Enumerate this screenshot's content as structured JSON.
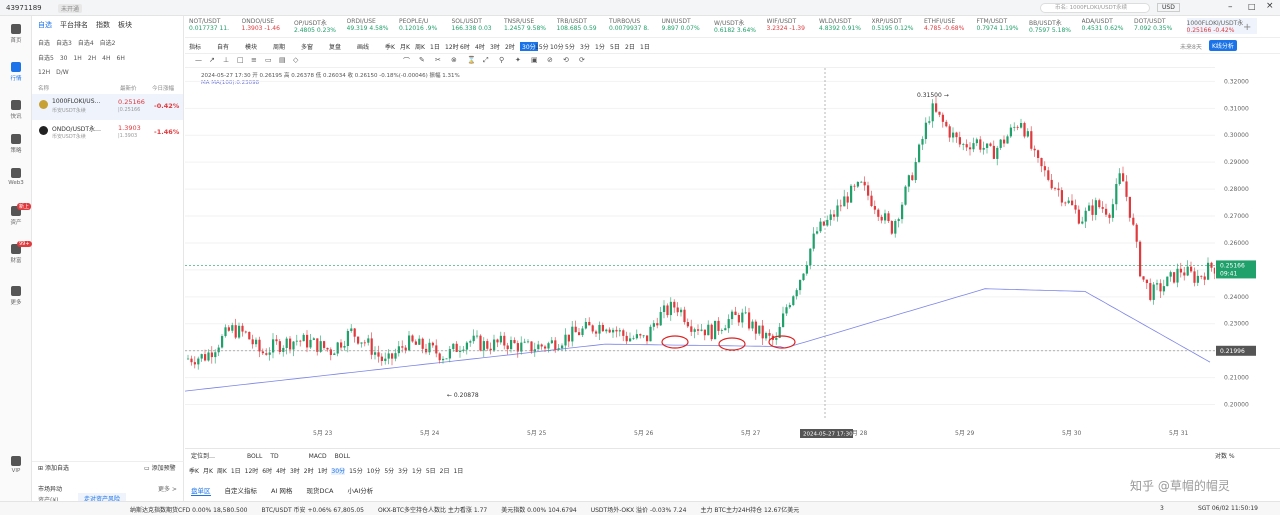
{
  "titlebar": {
    "account": "43971189",
    "status": "未开通",
    "search_placeholder": "币名: 1000FLOKI/USDT永续",
    "currency": "USD"
  },
  "leftnav": [
    {
      "label": "首页",
      "icon": "home-icon"
    },
    {
      "label": "行情",
      "icon": "chart-icon"
    },
    {
      "label": "快讯",
      "icon": "news-icon"
    },
    {
      "label": "策略",
      "icon": "strategy-icon"
    },
    {
      "label": "Web3",
      "icon": "web3-icon"
    },
    {
      "label": "资产",
      "icon": "wallet-icon",
      "badge": "新上"
    },
    {
      "label": "财富",
      "icon": "wealth-icon",
      "badge": "99+"
    },
    {
      "label": "更多",
      "icon": "more-icon"
    },
    {
      "label": "VIP",
      "icon": "vip-icon"
    }
  ],
  "watch": {
    "tabs": [
      "自选",
      "平台排名",
      "指数",
      "板块"
    ],
    "subtabs1": [
      "自选",
      "自选3",
      "自选4",
      "自选2"
    ],
    "subtabs2": [
      "自选5",
      "30",
      "1H",
      "2H",
      "4H",
      "6H"
    ],
    "subtabs3": [
      "12H",
      "D/W"
    ],
    "headers": {
      "name": "名称",
      "price": "最新价",
      "change": "今日涨幅"
    },
    "rows": [
      {
        "name": "1000FLOKI/US…",
        "sub": "币安USDT永续",
        "price": "0.25166",
        "sub2": "|0.25166",
        "change": "-0.42%"
      },
      {
        "name": "ONDO/USDT永…",
        "sub": "币安USDT永续",
        "price": "1.3903",
        "sub2": "|1.3903",
        "change": "-1.46%"
      }
    ],
    "add_watch": "添加自选",
    "add_alert": "添加预警"
  },
  "tickers": [
    {
      "n": "NOT/USDT",
      "p": "0.017737 11."
    },
    {
      "n": "ONDO/USE",
      "p": "1.3903 -1.46"
    },
    {
      "n": "OP/USDT永",
      "p": "2.4805 0.23%"
    },
    {
      "n": "ORDI/USE",
      "p": "49.319 4.58%"
    },
    {
      "n": "PEOPLE/U",
      "p": "0.12016 .9%"
    },
    {
      "n": "SOL/USDT",
      "p": "166.338 0.03"
    },
    {
      "n": "TNSR/USE",
      "p": "1.2457 9.58%"
    },
    {
      "n": "TRB/USDT",
      "p": "108.685 0.59"
    },
    {
      "n": "TURBO/US",
      "p": "0.0079937 8."
    },
    {
      "n": "UNI/USDT",
      "p": "9.897 0.07%"
    },
    {
      "n": "W/USDT永",
      "p": "0.6182 3.64%"
    },
    {
      "n": "WIF/USDT",
      "p": "3.2324 -1.39"
    },
    {
      "n": "WLD/USDT",
      "p": "4.8392 0.91%"
    },
    {
      "n": "XRP/USDT",
      "p": "0.5195 0.12%"
    },
    {
      "n": "ETHFI/USE",
      "p": "4.785 -0.68%"
    },
    {
      "n": "FTM/USDT",
      "p": "0.7974 1.19%"
    },
    {
      "n": "BB/USDT永",
      "p": "0.7597 5.18%"
    },
    {
      "n": "ADA/USDT",
      "p": "0.4531 0.62%"
    },
    {
      "n": "DOT/USDT",
      "p": "7.092 0.35%"
    },
    {
      "n": "1000FLOKI/USDT永",
      "p": "0.25166 -0.42%"
    }
  ],
  "toolbar": {
    "items": [
      "指标",
      "自有",
      "模块",
      "周期",
      "多窗",
      "复盘",
      "画线",
      "季K",
      "月K",
      "周K",
      "1日",
      "12时",
      "6时",
      "4时",
      "3时",
      "2时",
      "30分",
      "15分",
      "10分",
      "5分",
      "3分",
      "1分",
      "5日",
      "2日",
      "1日"
    ],
    "not_started": "未来8天",
    "kline_button": "K线分析"
  },
  "chart_info": {
    "line1": "2024-05-27 17:30 开 0.26195 高 0.26378 低 0.26034 收 0.26150 -0.18%(-0.00046) 振幅 1.31%",
    "line2": "MA MA(100):0.23098"
  },
  "chart_data": {
    "type": "candlestick",
    "ylim": [
      0.195,
      0.322
    ],
    "yticks": [
      0.2,
      0.21,
      0.22,
      0.23,
      0.24,
      0.25,
      0.26,
      0.27,
      0.28,
      0.29,
      0.3,
      0.31,
      0.32
    ],
    "xticks": [
      "5月 23",
      "5月 24",
      "5月 25",
      "5月 26",
      "5月 27",
      "5月 28",
      "5月 29",
      "5月 30",
      "5月 31"
    ],
    "price_marks": {
      "current": "0.25166",
      "current_time": "09:41",
      "crosshair": "0.21996",
      "high_label": "0.31500",
      "low_label": "0.20878"
    },
    "cursor_time": "2024-05-27 17:30",
    "series_ma": "MA(100)"
  },
  "indicators": {
    "left": "定位到…",
    "tabs": [
      "BOLL",
      "TD",
      "MACD",
      "BOLL"
    ],
    "right": "对数 %"
  },
  "periods": [
    "季K",
    "月K",
    "周K",
    "1日",
    "12时",
    "6时",
    "4时",
    "3时",
    "2时",
    "1时",
    "30分",
    "15分",
    "10分",
    "5分",
    "3分",
    "1分",
    "5日",
    "2日",
    "1日"
  ],
  "bottom_tabs": [
    "盘单区",
    "自定义指标",
    "AI 网格",
    "现货DCA",
    "小AI分析"
  ],
  "market": {
    "title": "市场异动",
    "more": "更多 >",
    "rows": [
      {
        "k": "资产(¥)",
        "v": "走对资产风险"
      }
    ]
  },
  "statusbar": {
    "items": [
      "纳斯达克指数期货CFD  0.00%  18,580.500",
      "BTC/USDT 币安 +0.06% 67,805.05",
      "OKX-BTC多空持仓人数比 主力看涨 1.77",
      "美元指数 0.00% 104.6794",
      "USDT场外-OKX 溢价 -0.03% 7.24",
      "主力 BTC主力24H持仓 12.67亿美元"
    ],
    "clock": "SGT 06/02 11:50:19",
    "watermark": "知乎 @草帽的帽灵",
    "notify": "3"
  }
}
